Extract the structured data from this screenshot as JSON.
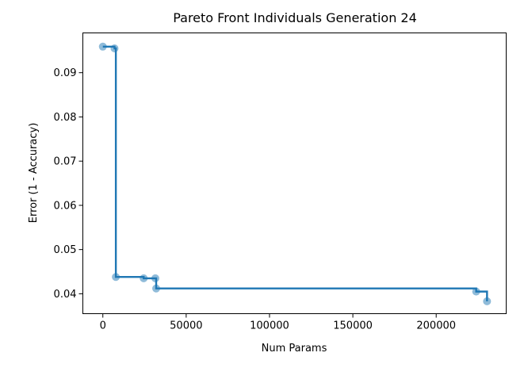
{
  "chart_data": {
    "type": "scatter",
    "title": "Pareto Front Individuals Generation 24",
    "xlabel": "Num Params",
    "ylabel": "Error (1 - Accuracy)",
    "xlim": [
      -12000,
      242000
    ],
    "ylim": [
      0.0355,
      0.099
    ],
    "xticks": [
      0,
      50000,
      100000,
      150000,
      200000
    ],
    "xtick_labels": [
      "0",
      "50000",
      "100000",
      "150000",
      "200000"
    ],
    "yticks": [
      0.04,
      0.05,
      0.06,
      0.07,
      0.08,
      0.09
    ],
    "ytick_labels": [
      "0.04",
      "0.05",
      "0.06",
      "0.07",
      "0.08",
      "0.09"
    ],
    "grid": false,
    "series": [
      {
        "step": "post",
        "color": "#1f77b4",
        "points": [
          {
            "x": 0,
            "y": 0.0959
          },
          {
            "x": 7000,
            "y": 0.0955
          },
          {
            "x": 7800,
            "y": 0.0438
          },
          {
            "x": 24500,
            "y": 0.0435
          },
          {
            "x": 31500,
            "y": 0.0435
          },
          {
            "x": 32000,
            "y": 0.0412
          },
          {
            "x": 224000,
            "y": 0.0405
          },
          {
            "x": 230500,
            "y": 0.0383
          }
        ]
      }
    ]
  }
}
